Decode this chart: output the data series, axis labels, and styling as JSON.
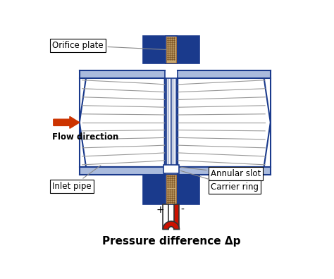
{
  "title": "Pressure difference Δp",
  "title_fontsize": 11,
  "title_fontweight": "bold",
  "bg_color": "#ffffff",
  "blue_dark": "#1a3a8c",
  "tan_color": "#c8a870",
  "red_color": "#cc1100",
  "gray_line": "#888888",
  "arrow_color": "#cc3300",
  "labels": {
    "orifice_plate": "Orifice plate",
    "inlet_pipe": "Inlet pipe",
    "annular_slot": "Annular slot",
    "carrier_ring": "Carrier ring",
    "flow_direction": "Flow direction",
    "plus": "+",
    "minus": "-"
  }
}
